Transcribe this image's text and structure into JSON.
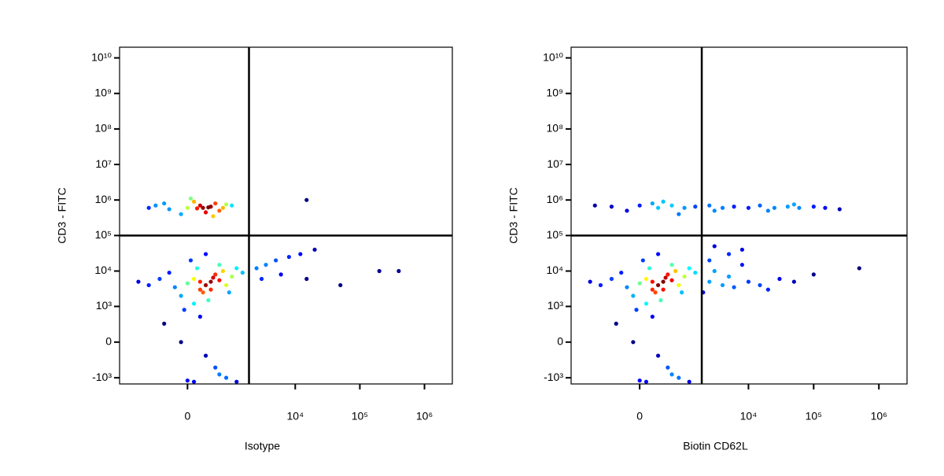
{
  "chart_data": [
    {
      "type": "scatter",
      "x_label": "Isotype",
      "y_label": "CD3 - FITC",
      "colormap": "jet",
      "xlim": [
        -2400,
        2700000
      ],
      "ylim": [
        -1500,
        20000000000
      ],
      "xticks": [
        {
          "value": 0,
          "label": "0"
        },
        {
          "value": 10000,
          "label": "10⁴"
        },
        {
          "value": 100000,
          "label": "10⁵"
        },
        {
          "value": 1000000,
          "label": "10⁶"
        }
      ],
      "yticks": [
        {
          "value": -1000,
          "label": "-10³"
        },
        {
          "value": 0,
          "label": "0"
        },
        {
          "value": 1000,
          "label": "10³"
        },
        {
          "value": 10000,
          "label": "10⁴"
        },
        {
          "value": 100000,
          "label": "10⁵"
        },
        {
          "value": 1000000,
          "label": "10⁶"
        },
        {
          "value": 10000000,
          "label": "10⁷"
        },
        {
          "value": 100000000,
          "label": "10⁸"
        },
        {
          "value": 1000000000,
          "label": "10⁹"
        },
        {
          "value": 10000000000,
          "label": "10¹⁰"
        }
      ],
      "quadrant_gate": {
        "x": 1900,
        "y": 100000
      },
      "x": [
        0,
        200,
        400,
        -300,
        600,
        100,
        300,
        -600,
        800,
        500,
        -100,
        250,
        350,
        150,
        -400,
        700,
        1000,
        50,
        450,
        -800,
        200,
        300,
        100,
        400,
        0,
        -200,
        600,
        500,
        -500,
        800,
        250,
        150,
        -100,
        700,
        1000,
        -800,
        350,
        1200,
        50,
        -300,
        900,
        450,
        200,
        -1200,
        1500,
        300,
        100,
        600,
        -50,
        400,
        2500,
        3500,
        5000,
        8000,
        12000,
        20000,
        3000,
        6000,
        15000,
        200000,
        400000,
        50000,
        15000,
        300,
        500,
        -100,
        800,
        0,
        1200,
        -400,
        200,
        600,
        100
      ],
      "y": [
        600000,
        700000,
        650000,
        550000,
        500000,
        900000,
        450000,
        700000,
        750000,
        800000,
        400000,
        600000,
        620000,
        580000,
        800000,
        600000,
        700000,
        1100000,
        350000,
        600000,
        5000,
        4000,
        6000,
        3000,
        4500,
        3500,
        5500,
        8000,
        6000,
        4000,
        2500,
        12000,
        2000,
        10000,
        7000,
        4000,
        1500,
        12000,
        20000,
        9000,
        2500,
        6500,
        3000,
        5000,
        9000,
        30000,
        1200,
        15000,
        800,
        5000,
        12000,
        15000,
        20000,
        25000,
        30000,
        40000,
        6000,
        8000,
        6000,
        10000,
        10000,
        4000,
        1000000,
        -200,
        -500,
        0,
        -1000,
        -1200,
        -1300,
        300,
        500,
        -800,
        -1300
      ]
    },
    {
      "type": "scatter",
      "x_label": "Biotin CD62L",
      "y_label": "CD3 - FITC",
      "colormap": "jet",
      "xlim": [
        -2400,
        2700000
      ],
      "ylim": [
        -1500,
        20000000000
      ],
      "xticks": [
        {
          "value": 0,
          "label": "0"
        },
        {
          "value": 10000,
          "label": "10⁴"
        },
        {
          "value": 100000,
          "label": "10⁵"
        },
        {
          "value": 1000000,
          "label": "10⁶"
        }
      ],
      "yticks": [
        {
          "value": -1000,
          "label": "-10³"
        },
        {
          "value": 0,
          "label": "0"
        },
        {
          "value": 1000,
          "label": "10³"
        },
        {
          "value": 10000,
          "label": "10⁴"
        },
        {
          "value": 100000,
          "label": "10⁵"
        },
        {
          "value": 1000000,
          "label": "10⁶"
        },
        {
          "value": 10000000,
          "label": "10⁷"
        },
        {
          "value": 100000000,
          "label": "10⁸"
        },
        {
          "value": 1000000000,
          "label": "10⁹"
        },
        {
          "value": 10000000000,
          "label": "10¹⁰"
        }
      ],
      "quadrant_gate": {
        "x": 1900,
        "y": 100000
      },
      "x": [
        0,
        300,
        -500,
        600,
        1000,
        -200,
        200,
        1500,
        2500,
        4000,
        6000,
        10000,
        15000,
        25000,
        40000,
        60000,
        100000,
        150000,
        250000,
        -1000,
        800,
        3000,
        20000,
        50000,
        400,
        200,
        300,
        100,
        400,
        0,
        -200,
        600,
        500,
        -500,
        800,
        250,
        150,
        -100,
        700,
        1000,
        -800,
        350,
        1200,
        50,
        -300,
        900,
        450,
        200,
        -1200,
        1500,
        300,
        100,
        600,
        -50,
        400,
        2500,
        4000,
        6000,
        10000,
        15000,
        3000,
        8000,
        20000,
        2000,
        5000,
        50000,
        100000,
        500000,
        30000,
        2500,
        5000,
        3000,
        8000,
        300,
        500,
        -100,
        800,
        0,
        1200,
        -400,
        200,
        600,
        100
      ],
      "y": [
        700000,
        600000,
        650000,
        700000,
        600000,
        500000,
        800000,
        650000,
        700000,
        600000,
        650000,
        600000,
        700000,
        600000,
        650000,
        600000,
        650000,
        600000,
        550000,
        700000,
        400000,
        500000,
        500000,
        750000,
        900000,
        5000,
        4000,
        6000,
        3000,
        4500,
        3500,
        5500,
        8000,
        6000,
        4000,
        2500,
        12000,
        2000,
        10000,
        7000,
        4000,
        1500,
        12000,
        20000,
        9000,
        2500,
        6500,
        3000,
        5000,
        9000,
        30000,
        1200,
        15000,
        800,
        5000,
        5000,
        4000,
        3500,
        5000,
        4000,
        10000,
        15000,
        3000,
        2500,
        7000,
        5000,
        8000,
        12000,
        6000,
        20000,
        30000,
        50000,
        40000,
        -200,
        -500,
        0,
        -1000,
        -1200,
        -1300,
        300,
        500,
        -800,
        -1300
      ]
    }
  ]
}
